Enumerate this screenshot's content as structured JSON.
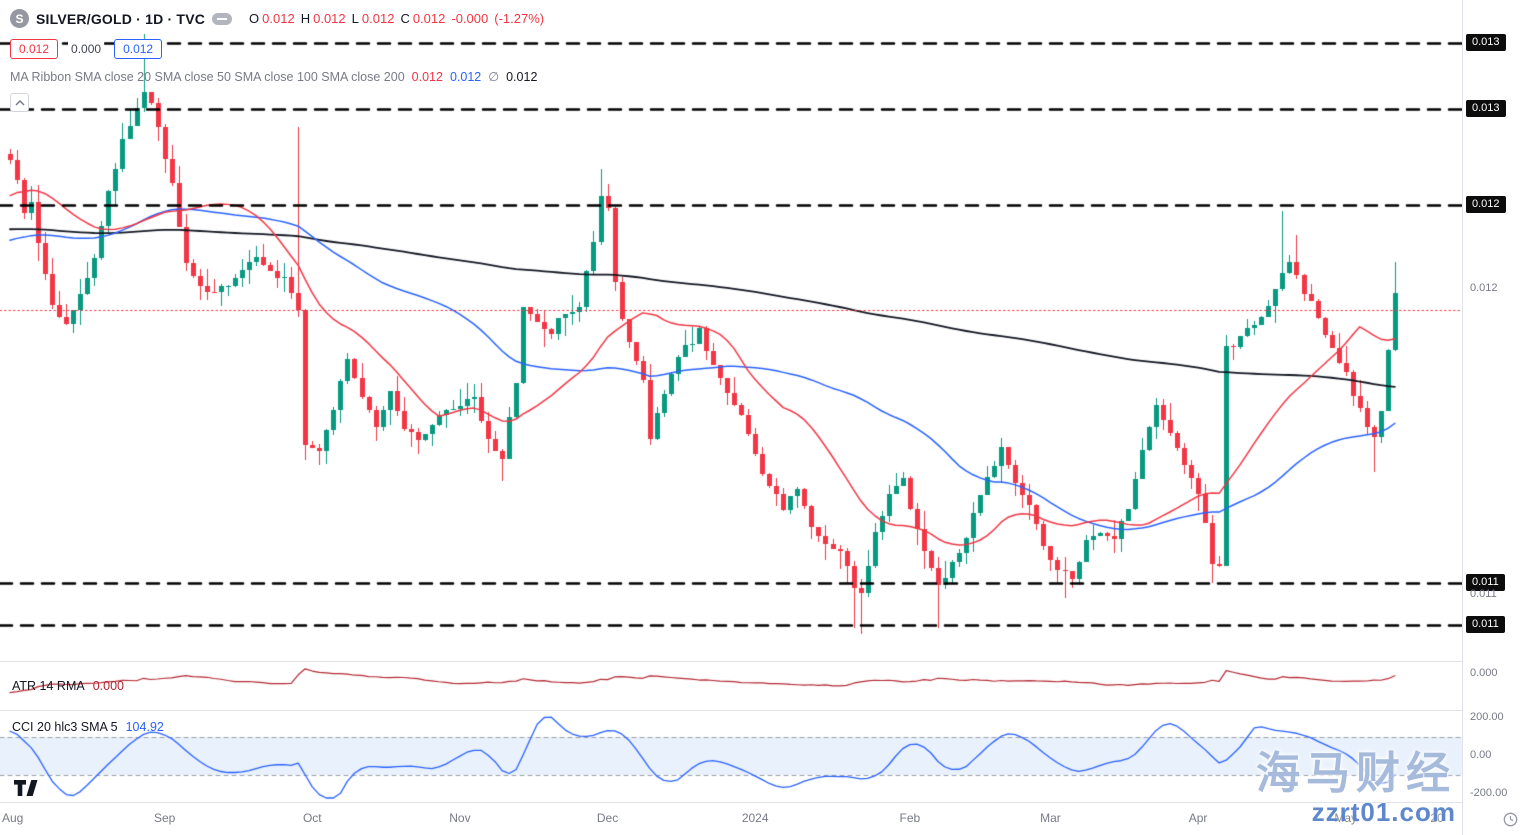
{
  "colors": {
    "background": "#ffffff",
    "up": "#089981",
    "down": "#f23645",
    "sma20": "#f23645",
    "sma50": "#2962ff",
    "sma200": "#131722",
    "atr_line": "#b22833",
    "cci_line": "#2962ff",
    "cci_band_fill": "#e9f1fc",
    "cci_band_edge": "#9aa0aa",
    "level_line": "#000000",
    "prev_close_line": "#f23645",
    "axis_badge_bg": "#0c0c0c",
    "axis_badge_text": "#ffffff",
    "separator": "#e0e3eb",
    "watermark_main": "#97afd6",
    "watermark_sub": "#4d7ac6"
  },
  "header": {
    "symbol_initial": "S",
    "title": "SILVER/GOLD · 1D · TVC",
    "ohlc_items": [
      {
        "k": "O",
        "v": "0.012"
      },
      {
        "k": "H",
        "v": "0.012"
      },
      {
        "k": "L",
        "v": "0.012"
      },
      {
        "k": "C",
        "v": "0.012"
      }
    ],
    "change": "-0.000",
    "change_pct": "(-1.27%)",
    "price_chips": [
      {
        "text": "0.012",
        "style": "red"
      },
      {
        "text": "0.000",
        "style": "plain"
      },
      {
        "text": "0.012",
        "style": "blue"
      }
    ],
    "ma_ribbon_label": "MA Ribbon SMA close 20 SMA close 50 SMA close 100 SMA close 200",
    "ma_values": [
      {
        "text": "0.012",
        "color": "#f23645"
      },
      {
        "text": "0.012",
        "color": "#2962ff"
      },
      {
        "text": "∅",
        "color": "#787b86"
      },
      {
        "text": "0.012",
        "color": "#131722"
      }
    ]
  },
  "panels": {
    "atr": {
      "name": "ATR 14 RMA",
      "value": "0.000",
      "axis_tick": "0.000"
    },
    "cci": {
      "name": "CCI 20 hlc3 SMA 5",
      "value": "104.92",
      "axis_ticks": [
        "200.00",
        "0.00",
        "-200.00"
      ]
    }
  },
  "watermark": {
    "line1": "海马财经",
    "line2": "zzrt01.com"
  },
  "chart_data": {
    "type": "candlestick",
    "symbol": "SILVER/GOLD",
    "interval": "1D",
    "exchange": "TVC",
    "bars": 198,
    "price_axis_range": [
      0.0107,
      0.0128
    ],
    "levels": [
      {
        "price": 0.01274,
        "label": "0.013"
      },
      {
        "price": 0.01252,
        "label": "0.013"
      },
      {
        "price": 0.0122,
        "label": "0.012"
      },
      {
        "price": 0.01094,
        "label": "0.011"
      },
      {
        "price": 0.0108,
        "label": "0.011"
      }
    ],
    "current_price": {
      "price": 0.01192,
      "label": "0.012"
    },
    "extra_axis_tick": {
      "price": 0.0109,
      "label": "0.011"
    },
    "prev_close_price": 0.01185,
    "months": [
      [
        "Aug",
        0
      ],
      [
        "Sep",
        22
      ],
      [
        "Oct",
        43
      ],
      [
        "Nov",
        64
      ],
      [
        "Dec",
        85
      ],
      [
        "2024",
        106
      ],
      [
        "Feb",
        128
      ],
      [
        "Mar",
        148
      ],
      [
        "Apr",
        169
      ],
      [
        "May",
        190
      ],
      [
        "20",
        203
      ]
    ],
    "close_anchors": [
      [
        0,
        0.01236
      ],
      [
        1,
        0.01228
      ],
      [
        2,
        0.01218
      ],
      [
        3,
        0.01222
      ],
      [
        4,
        0.01206
      ],
      [
        6,
        0.01186
      ],
      [
        8,
        0.01181
      ],
      [
        10,
        0.0119
      ],
      [
        12,
        0.01201
      ],
      [
        14,
        0.01224
      ],
      [
        16,
        0.01242
      ],
      [
        18,
        0.01252
      ],
      [
        19,
        0.01258
      ],
      [
        20,
        0.01253
      ],
      [
        21,
        0.01247
      ],
      [
        23,
        0.01226
      ],
      [
        25,
        0.012
      ],
      [
        27,
        0.01193
      ],
      [
        29,
        0.01191
      ],
      [
        31,
        0.01194
      ],
      [
        33,
        0.01198
      ],
      [
        35,
        0.01204
      ],
      [
        37,
        0.01199
      ],
      [
        39,
        0.01195
      ],
      [
        41,
        0.01184
      ],
      [
        42,
        0.01141
      ],
      [
        44,
        0.01138
      ],
      [
        46,
        0.01153
      ],
      [
        48,
        0.01168
      ],
      [
        50,
        0.01156
      ],
      [
        52,
        0.01147
      ],
      [
        54,
        0.01158
      ],
      [
        56,
        0.01145
      ],
      [
        58,
        0.01142
      ],
      [
        60,
        0.01146
      ],
      [
        62,
        0.01152
      ],
      [
        64,
        0.01154
      ],
      [
        66,
        0.01155
      ],
      [
        68,
        0.01141
      ],
      [
        70,
        0.01136
      ],
      [
        72,
        0.0116
      ],
      [
        73,
        0.01187
      ],
      [
        75,
        0.01181
      ],
      [
        77,
        0.01178
      ],
      [
        79,
        0.01184
      ],
      [
        81,
        0.01187
      ],
      [
        83,
        0.01207
      ],
      [
        84,
        0.01223
      ],
      [
        85,
        0.01219
      ],
      [
        86,
        0.01194
      ],
      [
        88,
        0.01173
      ],
      [
        90,
        0.01161
      ],
      [
        91,
        0.01143
      ],
      [
        93,
        0.01156
      ],
      [
        95,
        0.01169
      ],
      [
        97,
        0.01175
      ],
      [
        98,
        0.01179
      ],
      [
        100,
        0.01166
      ],
      [
        102,
        0.01156
      ],
      [
        104,
        0.01151
      ],
      [
        106,
        0.01136
      ],
      [
        108,
        0.01126
      ],
      [
        110,
        0.01119
      ],
      [
        112,
        0.01125
      ],
      [
        114,
        0.01113
      ],
      [
        116,
        0.01106
      ],
      [
        118,
        0.01105
      ],
      [
        120,
        0.01093
      ],
      [
        121,
        0.0109
      ],
      [
        123,
        0.01111
      ],
      [
        125,
        0.01123
      ],
      [
        127,
        0.01128
      ],
      [
        129,
        0.01111
      ],
      [
        131,
        0.01099
      ],
      [
        132,
        0.01092
      ],
      [
        134,
        0.01101
      ],
      [
        136,
        0.01109
      ],
      [
        138,
        0.01123
      ],
      [
        140,
        0.01134
      ],
      [
        141,
        0.0114
      ],
      [
        143,
        0.01127
      ],
      [
        145,
        0.01119
      ],
      [
        147,
        0.01106
      ],
      [
        149,
        0.01099
      ],
      [
        151,
        0.01096
      ],
      [
        153,
        0.01108
      ],
      [
        155,
        0.01111
      ],
      [
        157,
        0.01108
      ],
      [
        159,
        0.01119
      ],
      [
        161,
        0.01139
      ],
      [
        163,
        0.01152
      ],
      [
        165,
        0.01144
      ],
      [
        167,
        0.01134
      ],
      [
        169,
        0.01125
      ],
      [
        171,
        0.01101
      ],
      [
        172,
        0.01099
      ],
      [
        173,
        0.01172
      ],
      [
        175,
        0.01176
      ],
      [
        177,
        0.01181
      ],
      [
        179,
        0.01186
      ],
      [
        181,
        0.01197
      ],
      [
        182,
        0.012
      ],
      [
        184,
        0.01191
      ],
      [
        186,
        0.01183
      ],
      [
        188,
        0.01173
      ],
      [
        190,
        0.01163
      ],
      [
        192,
        0.01151
      ],
      [
        194,
        0.01142
      ],
      [
        195,
        0.01151
      ],
      [
        196,
        0.01171
      ],
      [
        197,
        0.01191
      ]
    ],
    "wick_events": [
      {
        "i": 19,
        "high": 0.01277
      },
      {
        "i": 41,
        "high": 0.01246
      },
      {
        "i": 42,
        "low": 0.01135
      },
      {
        "i": 70,
        "low": 0.01128
      },
      {
        "i": 84,
        "high": 0.01232
      },
      {
        "i": 120,
        "low": 0.01079
      },
      {
        "i": 121,
        "low": 0.01077
      },
      {
        "i": 132,
        "low": 0.01079
      },
      {
        "i": 150,
        "low": 0.01089
      },
      {
        "i": 171,
        "low": 0.01094
      },
      {
        "i": 181,
        "high": 0.01218
      },
      {
        "i": 183,
        "high": 0.0121
      },
      {
        "i": 194,
        "low": 0.01131
      },
      {
        "i": 197,
        "high": 0.01201
      }
    ],
    "history_anchors": [
      [
        0,
        0.0122
      ],
      [
        100,
        0.0122
      ],
      [
        115,
        0.01196
      ],
      [
        170,
        0.01196
      ],
      [
        185,
        0.01214
      ],
      [
        200,
        0.01239
      ]
    ],
    "overlays": [
      {
        "name": "SMA 20",
        "period": 20,
        "color_key": "sma20"
      },
      {
        "name": "SMA 50",
        "period": 50,
        "color_key": "sma50"
      },
      {
        "name": "SMA 200",
        "period": 200,
        "color_key": "sma200"
      }
    ],
    "indicators": [
      {
        "name": "ATR",
        "period": 14,
        "smoothing": "RMA",
        "last": "0.000"
      },
      {
        "name": "CCI",
        "period": 20,
        "source": "hlc3",
        "sma": 5,
        "band": [
          -100,
          100
        ],
        "last": 104.92
      }
    ]
  }
}
